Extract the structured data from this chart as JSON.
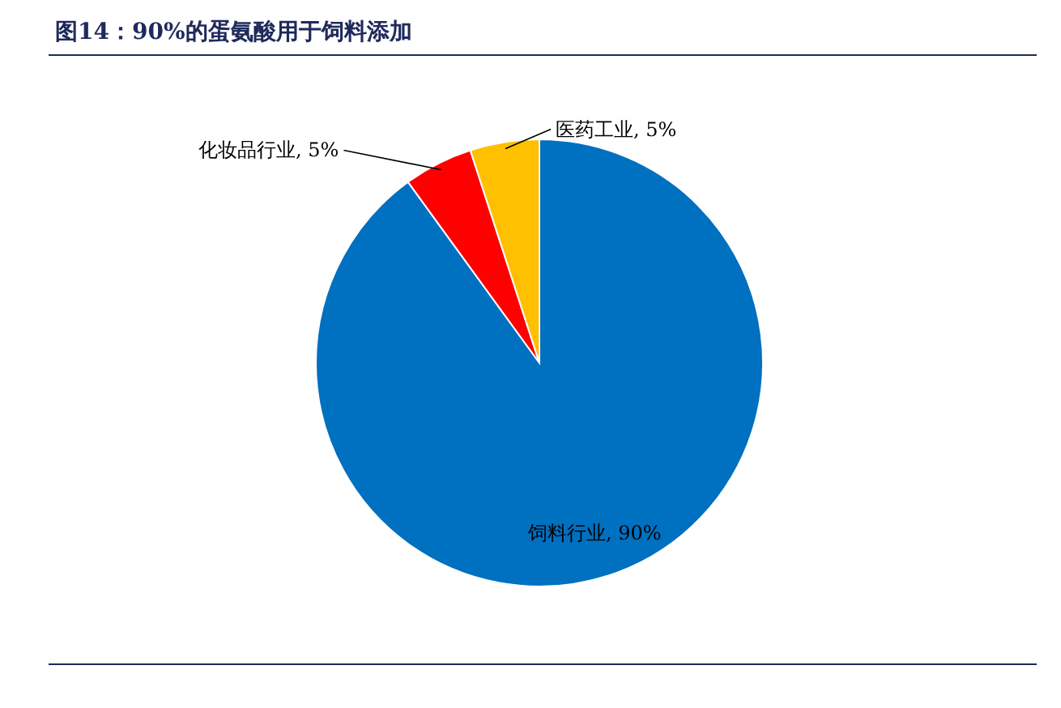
{
  "chart_data": {
    "type": "pie",
    "title": "图14：90%的蛋氨酸用于饲料添加",
    "categories": [
      "饲料行业",
      "化妆品行业",
      "医药工业"
    ],
    "values": [
      90,
      5,
      5
    ],
    "value_labels": [
      "90%",
      "5%",
      "5%"
    ],
    "colors": [
      "#0070c0",
      "#ff0000",
      "#ffc000"
    ]
  }
}
